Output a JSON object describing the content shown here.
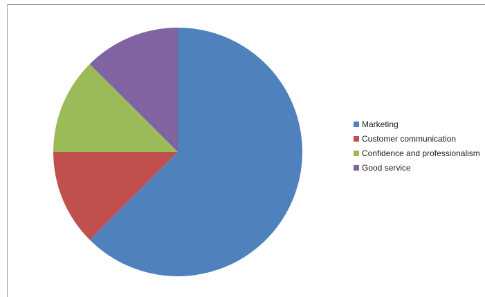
{
  "chart_data": {
    "type": "pie",
    "title": "",
    "categories": [
      "Marketing",
      "Customer communication",
      "Confidence and professionalism",
      "Good service"
    ],
    "values": [
      62.5,
      12.5,
      12.5,
      12.5
    ],
    "colors": [
      "#4F81BD",
      "#C0504D",
      "#9BBB59",
      "#8064A2"
    ],
    "start_angle_deg": 0,
    "direction": "clockwise",
    "legend_position": "right"
  },
  "legend": {
    "items": [
      {
        "label": "Marketing",
        "color": "#4F81BD"
      },
      {
        "label": "Customer communication",
        "color": "#C0504D"
      },
      {
        "label": "Confidence and professionalism",
        "color": "#9BBB59"
      },
      {
        "label": "Good service",
        "color": "#8064A2"
      }
    ]
  }
}
